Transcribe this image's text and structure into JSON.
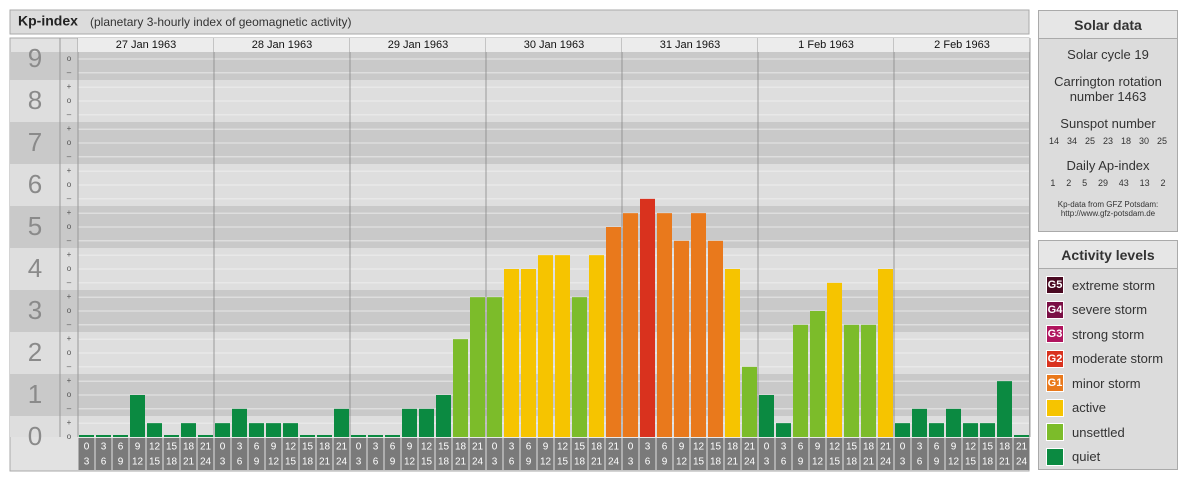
{
  "chart_data": {
    "type": "bar",
    "title": "Kp-index",
    "subtitle": "(planetary 3-hourly index of geomagnetic activity)",
    "days": [
      "27 Jan 1963",
      "28 Jan 1963",
      "29 Jan 1963",
      "30 Jan 1963",
      "31 Jan 1963",
      "1 Feb 1963",
      "2 Feb 1963"
    ],
    "hours": [
      [
        "0",
        "3"
      ],
      [
        "3",
        "6"
      ],
      [
        "6",
        "9"
      ],
      [
        "9",
        "12"
      ],
      [
        "12",
        "15"
      ],
      [
        "15",
        "18"
      ],
      [
        "18",
        "21"
      ],
      [
        "21",
        "24"
      ]
    ],
    "values": [
      0,
      0,
      0,
      1,
      0.33,
      0,
      0.33,
      0,
      0.33,
      0.67,
      0.33,
      0.33,
      0.33,
      0,
      0,
      0.67,
      0,
      0,
      0,
      0.67,
      0.67,
      1,
      2.33,
      3.33,
      3.33,
      4,
      4,
      4.33,
      4.33,
      3.33,
      4.33,
      5,
      5.33,
      5.67,
      5.33,
      4.67,
      5.33,
      4.67,
      4,
      1.67,
      1,
      0.33,
      2.67,
      3,
      3.67,
      2.67,
      2.67,
      4,
      0.33,
      0.67,
      0.33,
      0.67,
      0.33,
      0.33,
      1.33,
      0
    ],
    "colors": [
      "#0b8a41",
      "#0b8a41",
      "#0b8a41",
      "#0b8a41",
      "#0b8a41",
      "#0b8a41",
      "#0b8a41",
      "#0b8a41",
      "#0b8a41",
      "#0b8a41",
      "#0b8a41",
      "#0b8a41",
      "#0b8a41",
      "#0b8a41",
      "#0b8a41",
      "#0b8a41",
      "#0b8a41",
      "#0b8a41",
      "#0b8a41",
      "#0b8a41",
      "#0b8a41",
      "#0b8a41",
      "#7cbc2a",
      "#7cbc2a",
      "#7cbc2a",
      "#f6c400",
      "#f6c400",
      "#f6c400",
      "#f6c400",
      "#7cbc2a",
      "#f6c400",
      "#e9791c",
      "#e9791c",
      "#d9321e",
      "#e9791c",
      "#e9791c",
      "#e9791c",
      "#e9791c",
      "#f6c400",
      "#7cbc2a",
      "#0b8a41",
      "#0b8a41",
      "#7cbc2a",
      "#7cbc2a",
      "#f6c400",
      "#7cbc2a",
      "#7cbc2a",
      "#f6c400",
      "#0b8a41",
      "#0b8a41",
      "#0b8a41",
      "#0b8a41",
      "#0b8a41",
      "#0b8a41",
      "#0b8a41",
      "#0b8a41"
    ],
    "ylim": [
      0,
      9
    ],
    "yticks": [
      0,
      1,
      2,
      3,
      4,
      5,
      6,
      7,
      8,
      9
    ],
    "yminorticks": [
      {
        "value": 0,
        "label": "o"
      },
      {
        "value": 0.33,
        "label": "+"
      },
      {
        "value": 0.67,
        "label": "–"
      },
      {
        "value": 1,
        "label": "o"
      },
      {
        "value": 1.33,
        "label": "+"
      },
      {
        "value": 1.67,
        "label": "–"
      },
      {
        "value": 2,
        "label": "o"
      },
      {
        "value": 2.33,
        "label": "+"
      },
      {
        "value": 2.67,
        "label": "–"
      },
      {
        "value": 3,
        "label": "o"
      },
      {
        "value": 3.33,
        "label": "+"
      },
      {
        "value": 3.67,
        "label": "–"
      },
      {
        "value": 4,
        "label": "o"
      },
      {
        "value": 4.33,
        "label": "+"
      },
      {
        "value": 4.67,
        "label": "–"
      },
      {
        "value": 5,
        "label": "o"
      },
      {
        "value": 5.33,
        "label": "+"
      },
      {
        "value": 5.67,
        "label": "–"
      },
      {
        "value": 6,
        "label": "o"
      },
      {
        "value": 6.33,
        "label": "+"
      },
      {
        "value": 6.67,
        "label": "–"
      },
      {
        "value": 7,
        "label": "o"
      },
      {
        "value": 7.33,
        "label": "+"
      },
      {
        "value": 7.67,
        "label": "–"
      },
      {
        "value": 8,
        "label": "o"
      },
      {
        "value": 8.33,
        "label": "+"
      },
      {
        "value": 8.67,
        "label": "–"
      },
      {
        "value": 9,
        "label": "o"
      }
    ],
    "grid": true
  },
  "solar_data": {
    "title": "Solar data",
    "cycle": "Solar cycle 19",
    "rotation": "Carrington rotation number 1463",
    "sunspot_title": "Sunspot number",
    "sunspot": [
      "14",
      "34",
      "25",
      "23",
      "18",
      "30",
      "25"
    ],
    "ap_title": "Daily Ap-index",
    "ap": [
      "1",
      "2",
      "5",
      "29",
      "43",
      "13",
      "2"
    ],
    "source": "Kp-data from GFZ Potsdam:",
    "url": "http://www.gfz-potsdam.de"
  },
  "activity_levels": {
    "title": "Activity levels",
    "items": [
      {
        "badge": "G5",
        "label": "extreme storm",
        "color": "#4a0a22"
      },
      {
        "badge": "G4",
        "label": "severe storm",
        "color": "#7a0f45"
      },
      {
        "badge": "G3",
        "label": "strong storm",
        "color": "#b0145e"
      },
      {
        "badge": "G2",
        "label": "moderate storm",
        "color": "#d9321e"
      },
      {
        "badge": "G1",
        "label": "minor storm",
        "color": "#e9791c"
      },
      {
        "badge": null,
        "label": "active",
        "color": "#f6c400"
      },
      {
        "badge": null,
        "label": "unsettled",
        "color": "#7cbc2a"
      },
      {
        "badge": null,
        "label": "quiet",
        "color": "#0b8a41"
      }
    ]
  }
}
